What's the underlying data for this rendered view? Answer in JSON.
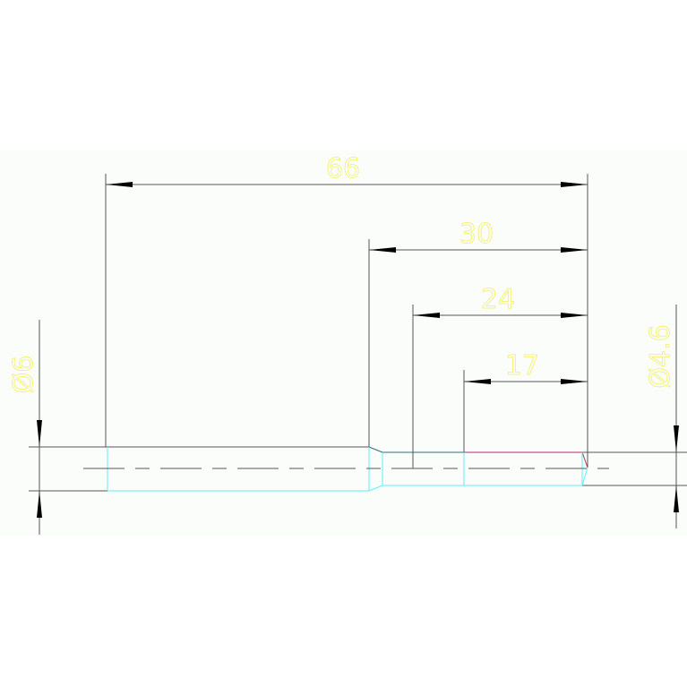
{
  "drawing": {
    "dimensions": {
      "overall_length": "66",
      "length_30": "30",
      "length_24": "24",
      "length_17": "17",
      "diameter_left": "Ø6",
      "diameter_right": "Ø4.6"
    },
    "colors": {
      "background": "#fbfdfb",
      "outline": "#555555",
      "hidden_edge": "#5ff0f5",
      "highlight_edge": "#b0306a",
      "dimension_text": "#f5f05a"
    }
  }
}
